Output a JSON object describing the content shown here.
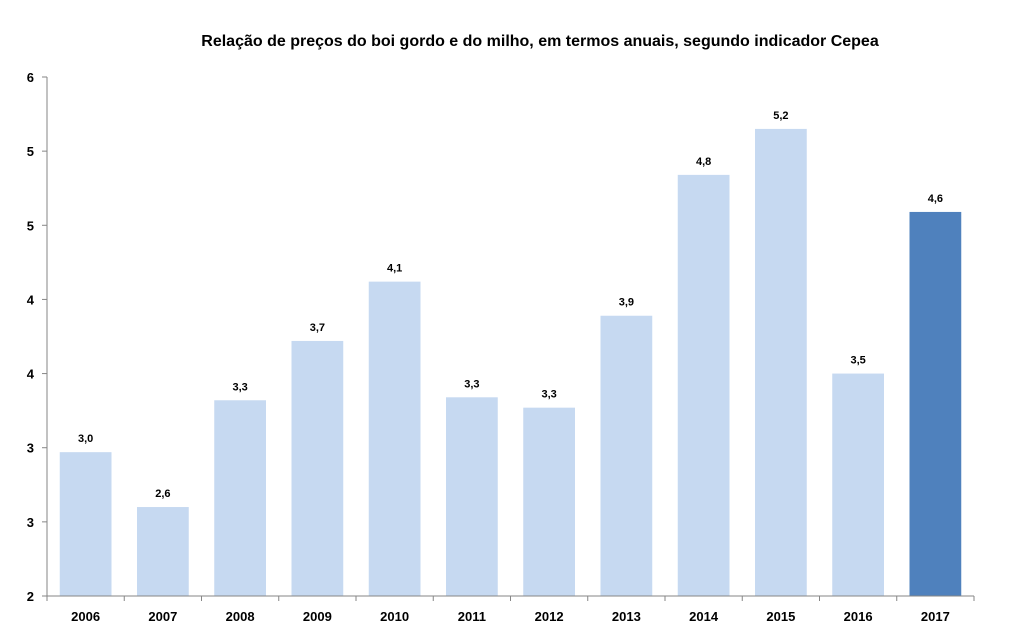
{
  "chart_data": {
    "type": "bar",
    "title": "Relação de preços do boi gordo e do milho, em termos anuais, segundo indicador Cepea",
    "xlabel": "",
    "ylabel": "",
    "categories": [
      "2006",
      "2007",
      "2008",
      "2009",
      "2010",
      "2011",
      "2012",
      "2013",
      "2014",
      "2015",
      "2016",
      "2017"
    ],
    "values": [
      2.97,
      2.6,
      3.32,
      3.72,
      4.12,
      3.34,
      3.27,
      3.89,
      4.84,
      5.15,
      3.5,
      4.59
    ],
    "data_labels": [
      "3,0",
      "2,6",
      "3,3",
      "3,7",
      "4,1",
      "3,3",
      "3,3",
      "3,9",
      "4,8",
      "5,2",
      "3,5",
      "4,6"
    ],
    "ylim": [
      2,
      5.5
    ],
    "y_tick_values": [
      2,
      2.5,
      3,
      3.5,
      4,
      4.5,
      5,
      5.5
    ],
    "y_tick_labels": [
      "2",
      "3",
      "3",
      "4",
      "4",
      "5",
      "5",
      "6"
    ],
    "grid": false,
    "legend": "none",
    "highlight_index": 11,
    "colors": {
      "bar": "#c6d9f1",
      "highlight": "#4f81bd",
      "axis": "#868686"
    }
  }
}
